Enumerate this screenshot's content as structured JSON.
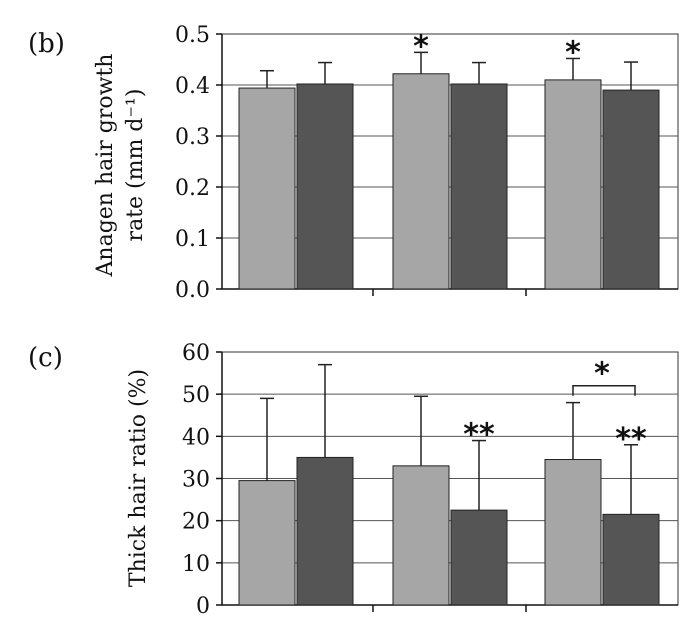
{
  "chart_data": [
    {
      "type": "bar",
      "panel_label": "(b)",
      "ylabel_lines": [
        "Anagen hair growth",
        "rate (mm d⁻¹)"
      ],
      "ylim": [
        0,
        0.5
      ],
      "yticks": [
        0.0,
        0.1,
        0.2,
        0.3,
        0.4,
        0.5
      ],
      "ytick_labels": [
        "0.0",
        "0.1",
        "0.2",
        "0.3",
        "0.4",
        "0.5"
      ],
      "grid": true,
      "group_count": 3,
      "series": [
        {
          "color": "#a6a6a6",
          "values": [
            0.394,
            0.422,
            0.41
          ],
          "errors": [
            0.034,
            0.042,
            0.042
          ]
        },
        {
          "color": "#555555",
          "values": [
            0.402,
            0.402,
            0.39
          ],
          "errors": [
            0.042,
            0.042,
            0.055
          ]
        }
      ],
      "annotations": [
        {
          "text": "*",
          "group": 1,
          "series": 0
        },
        {
          "text": "*",
          "group": 2,
          "series": 0
        }
      ]
    },
    {
      "type": "bar",
      "panel_label": "(c)",
      "ylabel_lines": [
        "Thick hair ratio (%)"
      ],
      "ylim": [
        0,
        60
      ],
      "yticks": [
        0,
        10,
        20,
        30,
        40,
        50,
        60
      ],
      "ytick_labels": [
        "0",
        "10",
        "20",
        "30",
        "40",
        "50",
        "60"
      ],
      "grid": true,
      "group_count": 3,
      "series": [
        {
          "color": "#a6a6a6",
          "values": [
            29.5,
            33,
            34.5
          ],
          "errors": [
            19.5,
            16.5,
            13.5
          ]
        },
        {
          "color": "#555555",
          "values": [
            35,
            22.5,
            21.5
          ],
          "errors": [
            22,
            16.5,
            16.5
          ]
        }
      ],
      "annotations": [
        {
          "text": "**",
          "group": 1,
          "series": 1
        },
        {
          "text": "**",
          "group": 2,
          "series": 1
        }
      ],
      "brackets": [
        {
          "text": "*",
          "group": 2,
          "from_series": 0,
          "to_series": 1,
          "y": 52
        }
      ]
    }
  ]
}
